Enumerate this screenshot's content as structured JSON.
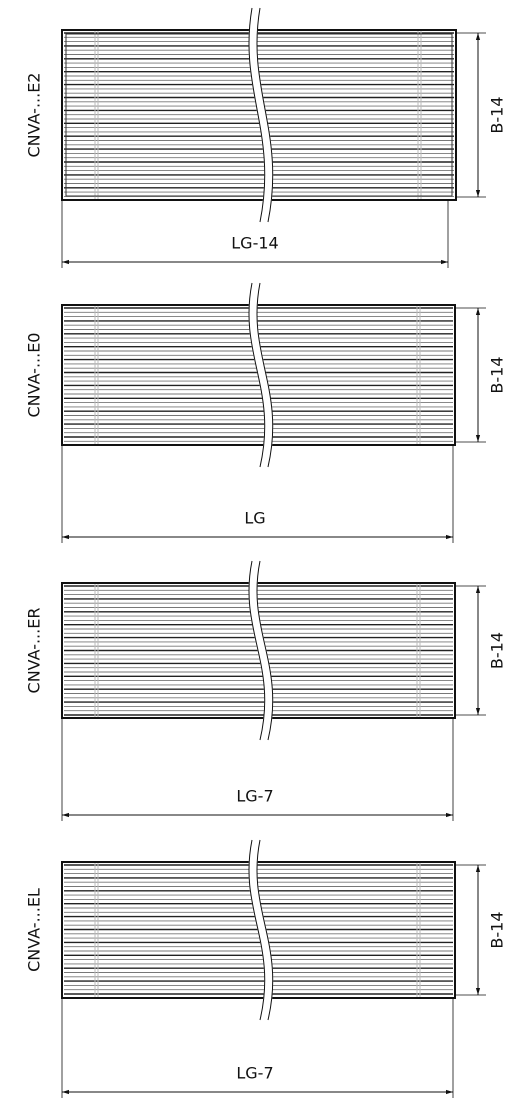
{
  "views": [
    {
      "label": "CNVA-...E2",
      "height_dim": "B-14",
      "width_dim": "LG-14"
    },
    {
      "label": "CNVA-...E0",
      "height_dim": "B-14",
      "width_dim": "LG"
    },
    {
      "label": "CNVA-...ER",
      "height_dim": "B-14",
      "width_dim": "LG-7"
    },
    {
      "label": "CNVA-...EL",
      "height_dim": "B-14",
      "width_dim": "LG-7"
    }
  ]
}
